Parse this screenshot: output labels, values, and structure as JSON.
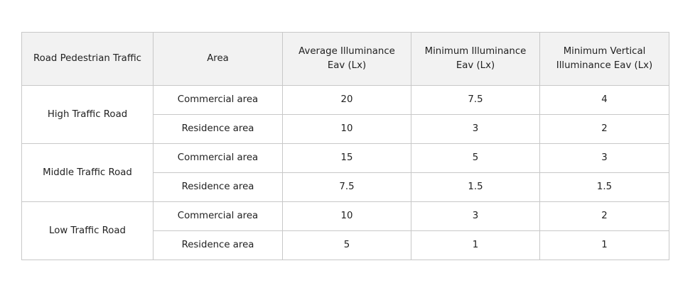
{
  "table": {
    "headers": [
      "Road Pedestrian Traffic",
      "Area",
      "Average Illuminance Eav (Lx)",
      "Minimum Illuminance Eav (Lx)",
      "Minimum Vertical Illuminance Eav (Lx)"
    ],
    "groups": [
      {
        "road": "High Traffic Road",
        "rows": [
          {
            "area": "Commercial area",
            "avg": "20",
            "min": "7.5",
            "min_vertical": "4"
          },
          {
            "area": "Residence area",
            "avg": "10",
            "min": "3",
            "min_vertical": "2"
          }
        ]
      },
      {
        "road": "Middle Traffic Road",
        "rows": [
          {
            "area": "Commercial area",
            "avg": "15",
            "min": "5",
            "min_vertical": "3"
          },
          {
            "area": "Residence area",
            "avg": "7.5",
            "min": "1.5",
            "min_vertical": "1.5"
          }
        ]
      },
      {
        "road": "Low Traffic Road",
        "rows": [
          {
            "area": "Commercial area",
            "avg": "10",
            "min": "3",
            "min_vertical": "2"
          },
          {
            "area": "Residence area",
            "avg": "5",
            "min": "1",
            "min_vertical": "1"
          }
        ]
      }
    ]
  }
}
